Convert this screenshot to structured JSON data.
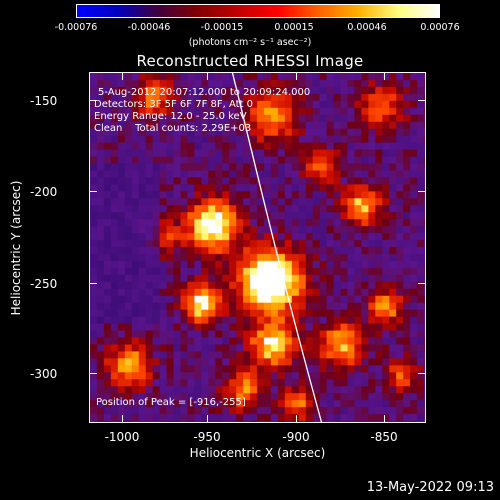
{
  "colorbar": {
    "ticks": [
      "-0.00076",
      "-0.00046",
      "-0.00015",
      "0.00015",
      "0.00046",
      "0.00076"
    ],
    "units": "(photons cm⁻² s⁻¹ asec⁻²)"
  },
  "title": "Reconstructed RHESSI Image",
  "info_lines": [
    "5-Aug-2012 20:07:12.000 to 20:09:24.000",
    "Detectors: 3F 5F 6F 7F 8F, Att 0",
    "Energy Range: 12.0 - 25.0 keV",
    "Clean    Total counts: 2.29E+03"
  ],
  "peak_text": "Position of Peak = [-916,-255]",
  "axes": {
    "xlabel": "Heliocentric X (arcsec)",
    "ylabel": "Heliocentric Y (arcsec)",
    "xticks": [
      "-1000",
      "-950",
      "-900",
      "-850"
    ],
    "yticks": [
      "-150",
      "-200",
      "-250",
      "-300"
    ]
  },
  "footer_timestamp": "13-May-2022 09:13",
  "colors": {
    "background": "#000000",
    "text": "#ffffff",
    "colormap": [
      "#0000ff",
      "#0000c0",
      "#400040",
      "#800000",
      "#c00000",
      "#ff0000",
      "#ff6000",
      "#ffb000",
      "#ffff80",
      "#ffffff"
    ]
  }
}
